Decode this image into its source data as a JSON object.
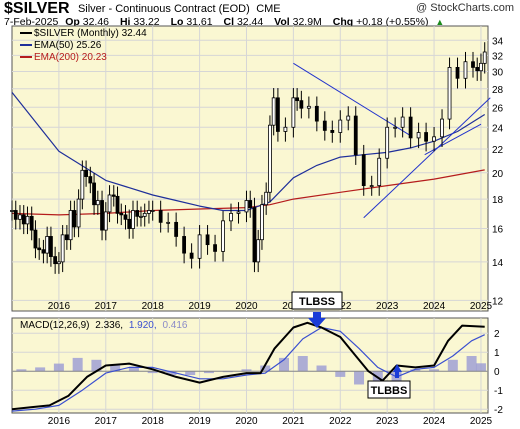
{
  "header": {
    "symbol": "$SILVER",
    "description": "Silver - Continuous Contract (EOD)",
    "exchange": "CME",
    "copyright": "@ StockCharts.com",
    "date": "7-Feb-2025",
    "quote": [
      {
        "label": "Op",
        "value": "32.46"
      },
      {
        "label": "Hi",
        "value": "33.22"
      },
      {
        "label": "Lo",
        "value": "31.61"
      },
      {
        "label": "Cl",
        "value": "32.44"
      },
      {
        "label": "Vol",
        "value": "32.9M"
      },
      {
        "label": "Chg",
        "value": "+0.18 (+0.55%)"
      }
    ],
    "up_arrow": "▲"
  },
  "legend": {
    "price": "$SILVER (Monthly) 32.44",
    "ema50": "EMA(50) 25.26",
    "ema200": "EMA(200) 20.23"
  },
  "macd_labels": {
    "name": "MACD(12,26,9)",
    "macd": "2.336,",
    "signal": "1.920,",
    "hist": "0.416"
  },
  "annotations": {
    "top": "TLBSS",
    "bottom": "TLBBS"
  },
  "colors": {
    "background": "#ffffff",
    "plot_bg": "#faf7d2",
    "grid": "#d6d6d6",
    "price": "#000000",
    "ema50": "#1f2f9a",
    "ema200": "#b51c1c",
    "trendline": "#2233cc",
    "macd": "#000000",
    "signal": "#3a4fd0",
    "histogram": "#9a9ad4",
    "arrow": "#1a3cd8"
  },
  "chart_data": [
    {
      "type": "line",
      "title": "Silver - Continuous Contract (EOD)",
      "scale": "log",
      "ylim": [
        11.5,
        36
      ],
      "yticks": [
        12,
        14,
        16,
        18,
        20,
        22,
        24,
        26,
        28,
        30,
        32,
        34
      ],
      "xticks": [
        "2016",
        "2017",
        "2018",
        "2019",
        "2020",
        "2021",
        "2022",
        "2023",
        "2024",
        "2025"
      ],
      "x_range": [
        2015.0,
        2025.15
      ],
      "grid": true,
      "legend_position": "top-left",
      "series": [
        {
          "name": "$SILVER (Monthly)",
          "x": [
            2015.0,
            2015.08,
            2015.17,
            2015.25,
            2015.33,
            2015.42,
            2015.5,
            2015.58,
            2015.67,
            2015.75,
            2015.83,
            2015.92,
            2016.0,
            2016.08,
            2016.17,
            2016.25,
            2016.33,
            2016.42,
            2016.5,
            2016.58,
            2016.67,
            2016.75,
            2016.83,
            2016.92,
            2017.0,
            2017.08,
            2017.17,
            2017.25,
            2017.33,
            2017.42,
            2017.5,
            2017.58,
            2017.67,
            2017.75,
            2017.83,
            2017.92,
            2018.0,
            2018.17,
            2018.33,
            2018.5,
            2018.67,
            2018.83,
            2019.0,
            2019.17,
            2019.33,
            2019.5,
            2019.67,
            2019.83,
            2020.0,
            2020.08,
            2020.17,
            2020.25,
            2020.33,
            2020.42,
            2020.5,
            2020.58,
            2020.67,
            2020.83,
            2021.0,
            2021.08,
            2021.17,
            2021.33,
            2021.5,
            2021.67,
            2021.83,
            2022.0,
            2022.17,
            2022.33,
            2022.5,
            2022.67,
            2022.83,
            2023.0,
            2023.17,
            2023.33,
            2023.5,
            2023.67,
            2023.83,
            2024.0,
            2024.17,
            2024.33,
            2024.5,
            2024.67,
            2024.83,
            2024.92,
            2025.0,
            2025.08
          ],
          "values": [
            17.2,
            16.6,
            16.9,
            16.3,
            16.8,
            15.9,
            14.8,
            14.7,
            14.5,
            15.5,
            14.3,
            13.9,
            14.0,
            15.6,
            15.3,
            17.2,
            16.1,
            18.0,
            20.2,
            19.7,
            19.2,
            17.6,
            17.9,
            15.9,
            17.1,
            18.3,
            18.2,
            17.0,
            16.9,
            16.6,
            16.0,
            17.2,
            16.8,
            16.8,
            17.0,
            17.2,
            17.2,
            16.4,
            16.4,
            15.5,
            14.5,
            14.2,
            15.6,
            15.0,
            14.6,
            16.5,
            17.0,
            17.1,
            17.9,
            17.4,
            14.0,
            15.3,
            17.6,
            18.5,
            24.2,
            27.0,
            23.6,
            24.0,
            27.0,
            26.7,
            25.9,
            26.1,
            24.6,
            23.7,
            23.5,
            24.7,
            25.1,
            21.5,
            19.0,
            19.0,
            21.2,
            24.0,
            24.0,
            25.0,
            23.0,
            23.5,
            22.7,
            23.1,
            24.8,
            30.5,
            29.2,
            31.2,
            30.5,
            30.1,
            31.0,
            32.44
          ]
        },
        {
          "name": "EMA(50)",
          "x": [
            2015.0,
            2016.0,
            2017.0,
            2018.0,
            2018.5,
            2019.0,
            2019.5,
            2020.0,
            2020.5,
            2021.0,
            2021.5,
            2022.0,
            2022.5,
            2023.0,
            2023.5,
            2024.0,
            2024.5,
            2025.08
          ],
          "values": [
            27.6,
            21.8,
            19.4,
            18.3,
            17.9,
            17.5,
            17.2,
            17.2,
            17.8,
            19.6,
            20.6,
            21.3,
            21.5,
            21.7,
            22.1,
            22.7,
            23.6,
            25.26
          ]
        },
        {
          "name": "EMA(200)",
          "x": [
            2015.0,
            2016.0,
            2017.0,
            2018.0,
            2019.0,
            2020.0,
            2020.5,
            2021.0,
            2022.0,
            2023.0,
            2024.0,
            2025.08
          ],
          "values": [
            17.0,
            16.9,
            17.0,
            17.2,
            17.3,
            17.4,
            17.6,
            18.0,
            18.5,
            19.0,
            19.5,
            20.23
          ]
        },
        {
          "name": "Trendline resistance",
          "x": [
            2021.0,
            2023.5
          ],
          "values": [
            31.0,
            23.2
          ]
        },
        {
          "name": "Trendline support",
          "x": [
            2022.5,
            2025.2
          ],
          "values": [
            16.7,
            27.0
          ]
        },
        {
          "name": "Trendline support 2",
          "x": [
            2023.8,
            2025.0
          ],
          "values": [
            21.5,
            24.3
          ]
        }
      ]
    },
    {
      "type": "line",
      "title": "MACD(12,26,9)",
      "ylim": [
        -2.2,
        2.8
      ],
      "yticks": [
        -2,
        -1,
        0,
        1,
        2
      ],
      "xticks": [
        "2016",
        "2017",
        "2018",
        "2019",
        "2020",
        "2021",
        "2022",
        "2023",
        "2024",
        "2025"
      ],
      "x_range": [
        2015.0,
        2025.15
      ],
      "grid": true,
      "series": [
        {
          "name": "MACD",
          "x": [
            2015.0,
            2015.4,
            2015.8,
            2016.2,
            2016.6,
            2017.0,
            2017.5,
            2018.0,
            2018.5,
            2019.0,
            2019.5,
            2020.0,
            2020.3,
            2020.6,
            2021.0,
            2021.3,
            2021.6,
            2022.0,
            2022.3,
            2022.6,
            2022.9,
            2023.2,
            2023.6,
            2024.0,
            2024.3,
            2024.6,
            2025.08
          ],
          "values": [
            -2.0,
            -1.9,
            -1.8,
            -1.3,
            -0.3,
            0.3,
            0.4,
            0.1,
            -0.3,
            -0.6,
            -0.3,
            -0.1,
            -0.1,
            1.2,
            2.3,
            2.55,
            2.3,
            1.8,
            0.9,
            0.0,
            -0.5,
            0.3,
            0.2,
            0.3,
            1.6,
            2.4,
            2.336
          ]
        },
        {
          "name": "Signal",
          "x": [
            2015.0,
            2015.5,
            2016.0,
            2016.5,
            2017.0,
            2017.5,
            2018.0,
            2018.5,
            2019.0,
            2019.5,
            2020.0,
            2020.4,
            2020.8,
            2021.2,
            2021.6,
            2022.0,
            2022.4,
            2022.8,
            2023.2,
            2023.6,
            2024.0,
            2024.4,
            2024.8,
            2025.08
          ],
          "values": [
            -2.1,
            -2.0,
            -1.8,
            -1.0,
            -0.1,
            0.2,
            0.2,
            -0.1,
            -0.4,
            -0.4,
            -0.2,
            -0.1,
            0.6,
            1.7,
            2.3,
            2.1,
            1.2,
            0.2,
            -0.3,
            0.1,
            0.2,
            0.8,
            1.6,
            1.92
          ]
        },
        {
          "name": "Histogram",
          "x": [
            2015.2,
            2015.6,
            2016.0,
            2016.4,
            2016.8,
            2017.2,
            2017.6,
            2018.0,
            2018.4,
            2018.8,
            2019.2,
            2019.6,
            2020.0,
            2020.4,
            2020.8,
            2021.2,
            2021.6,
            2022.0,
            2022.4,
            2022.8,
            2023.2,
            2023.6,
            2024.0,
            2024.4,
            2024.8,
            2025.0
          ],
          "values": [
            0.1,
            0.2,
            0.4,
            0.7,
            0.6,
            0.3,
            0.2,
            -0.1,
            -0.2,
            -0.2,
            -0.1,
            0.0,
            0.1,
            0.3,
            0.7,
            0.8,
            0.3,
            -0.3,
            -0.7,
            -0.8,
            -0.5,
            0.1,
            0.1,
            0.6,
            0.8,
            0.416
          ]
        }
      ]
    }
  ]
}
